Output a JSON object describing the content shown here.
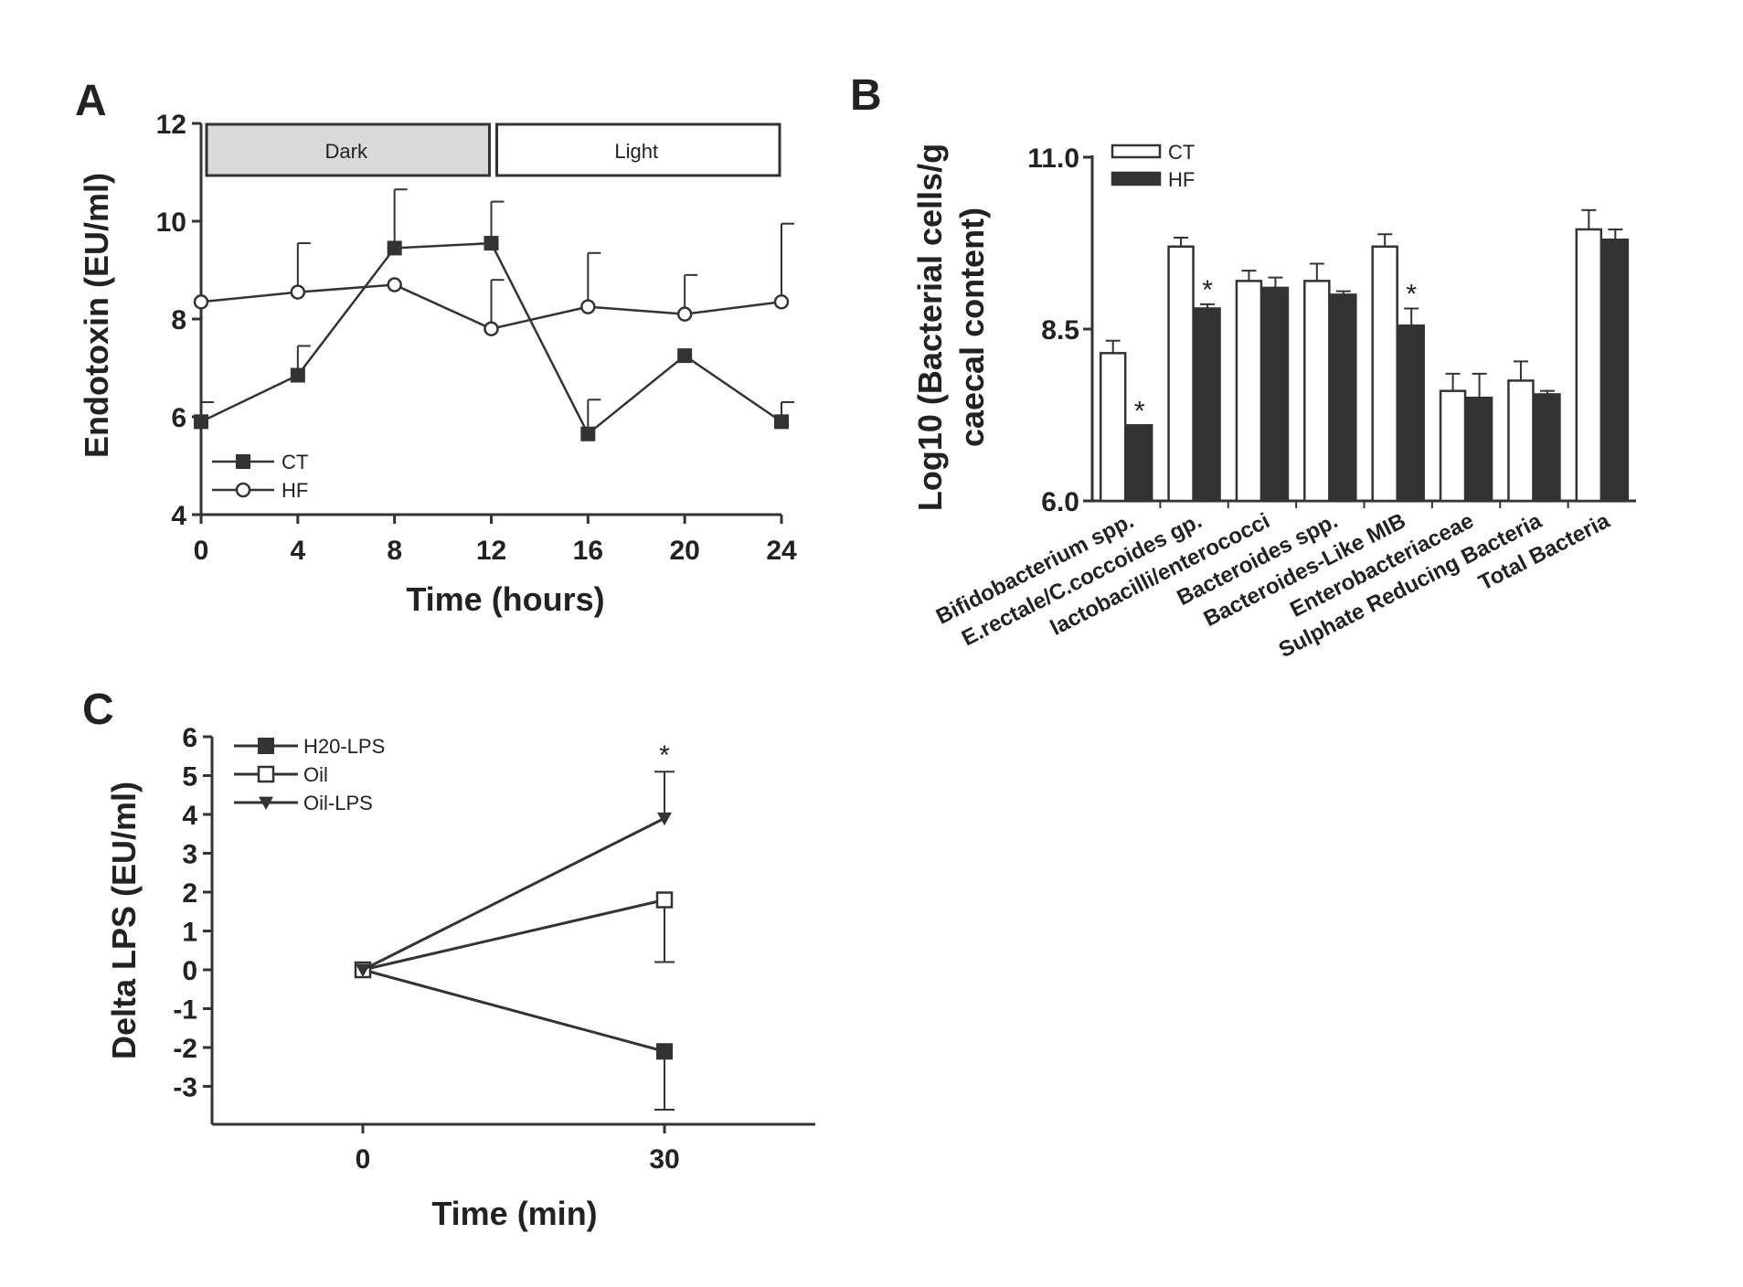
{
  "chart_data": [
    {
      "panel": "A",
      "type": "line",
      "ylabel": "Endotoxin (EU/ml)",
      "xlabel": "Time (hours)",
      "x": [
        0,
        4,
        8,
        12,
        16,
        20,
        24
      ],
      "xlim": [
        0,
        24
      ],
      "ylim": [
        4,
        12
      ],
      "yticks": [
        4,
        6,
        8,
        10,
        12
      ],
      "bands": [
        {
          "label": "Dark",
          "from": 0,
          "to": 12,
          "color": "#d9d9d9"
        },
        {
          "label": "Light",
          "from": 12,
          "to": 24,
          "color": "#ffffff"
        }
      ],
      "series": [
        {
          "name": "CT",
          "marker": "square-filled",
          "values": [
            5.9,
            6.85,
            9.45,
            9.55,
            5.65,
            7.25,
            5.9
          ],
          "err": [
            0.4,
            0.6,
            1.2,
            0.85,
            0.7,
            0.0,
            0.4
          ]
        },
        {
          "name": "HF",
          "marker": "circle-open",
          "values": [
            8.35,
            8.55,
            8.7,
            7.8,
            8.25,
            8.1,
            8.35
          ],
          "err": [
            0.0,
            1.0,
            0.0,
            1.0,
            1.1,
            0.8,
            1.6
          ]
        }
      ],
      "legend": "bottom-left",
      "grid": false
    },
    {
      "panel": "B",
      "type": "bar",
      "ylabel_lines": [
        "Log10 (Bacterial cells/g",
        "caecal content)"
      ],
      "ylim": [
        6.0,
        11.0
      ],
      "yticks": [
        "6.0",
        "8.5",
        "11.0"
      ],
      "categories": [
        "Bifidobacterium spp.",
        "E.rectale/C.coccoides gp.",
        "lactobacilli/enterococci",
        "Bacteroides spp.",
        "Bacteroides-Like MIB",
        "Enterobacteriaceae",
        "Sulphate Reducing Bacteria",
        "Total Bacteria"
      ],
      "series": [
        {
          "name": "CT",
          "fill": "#ffffff",
          "values": [
            8.15,
            9.7,
            9.2,
            9.2,
            9.7,
            7.6,
            7.75,
            9.95
          ],
          "err": [
            0.18,
            0.13,
            0.15,
            0.25,
            0.18,
            0.25,
            0.28,
            0.28
          ]
        },
        {
          "name": "HF",
          "fill": "#333333",
          "values": [
            7.1,
            8.8,
            9.1,
            9.0,
            8.55,
            7.5,
            7.55,
            9.8
          ],
          "err": [
            0.0,
            0.06,
            0.15,
            0.05,
            0.25,
            0.35,
            0.05,
            0.15
          ]
        }
      ],
      "significance": [
        {
          "category": 0,
          "series": "HF",
          "label": "*"
        },
        {
          "category": 1,
          "series": "HF",
          "label": "*"
        },
        {
          "category": 4,
          "series": "HF",
          "label": "*"
        }
      ],
      "legend": "top-left",
      "grid": false
    },
    {
      "panel": "C",
      "type": "line",
      "ylabel": "Delta LPS (EU/ml)",
      "xlabel": "Time (min)",
      "x": [
        0,
        30
      ],
      "xlim": [
        -15,
        45
      ],
      "ylim": [
        -4,
        6
      ],
      "yticks": [
        "-3",
        "-2",
        "-1",
        "0",
        "1",
        "2",
        "3",
        "4",
        "5",
        "6"
      ],
      "series": [
        {
          "name": "H20-LPS",
          "marker": "square-filled",
          "values": [
            0,
            -2.1
          ],
          "err": [
            0,
            1.5
          ],
          "err_dir": "down"
        },
        {
          "name": "Oil",
          "marker": "square-open",
          "values": [
            0,
            1.8
          ],
          "err": [
            0,
            1.6
          ],
          "err_dir": "down"
        },
        {
          "name": "Oil-LPS",
          "marker": "triangle-down-filled",
          "values": [
            0,
            3.9
          ],
          "err": [
            0,
            1.2
          ],
          "err_dir": "up"
        }
      ],
      "significance": [
        {
          "x": 30,
          "label": "*"
        }
      ],
      "legend": "top-left",
      "grid": false
    }
  ]
}
